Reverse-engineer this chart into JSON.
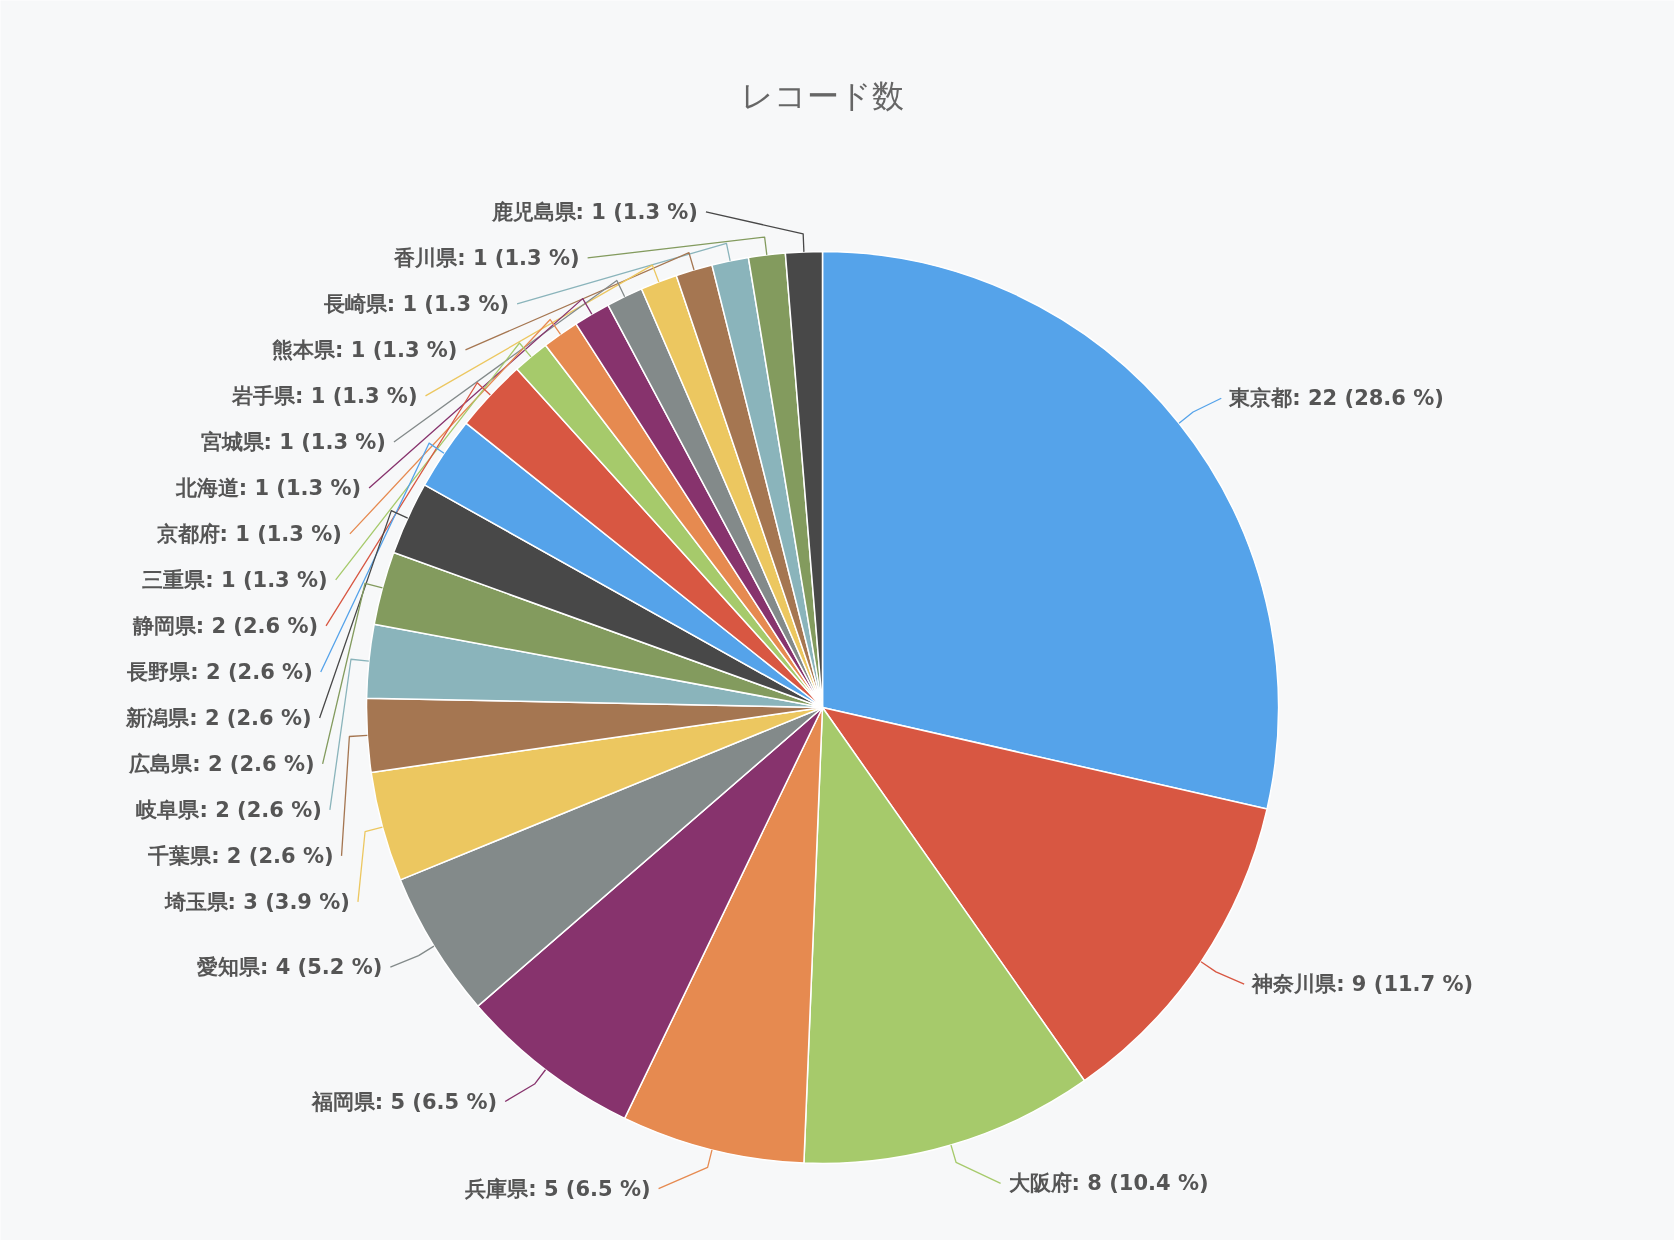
{
  "chart_data": {
    "type": "pie",
    "title": "レコード数",
    "categories": [
      "東京都",
      "神奈川県",
      "大阪府",
      "兵庫県",
      "福岡県",
      "愛知県",
      "埼玉県",
      "千葉県",
      "岐阜県",
      "広島県",
      "新潟県",
      "長野県",
      "静岡県",
      "三重県",
      "京都府",
      "北海道",
      "宮城県",
      "岩手県",
      "熊本県",
      "長崎県",
      "香川県",
      "鹿児島県"
    ],
    "values": [
      22,
      9,
      8,
      5,
      5,
      4,
      3,
      2,
      2,
      2,
      2,
      2,
      2,
      1,
      1,
      1,
      1,
      1,
      1,
      1,
      1,
      1
    ],
    "value_labels": [
      "22 (28.6 %)",
      "9 (11.7 %)",
      "8 (10.4 %)",
      "5 (6.5 %)",
      "5 (6.5 %)",
      "4 (5.2 %)",
      "3 (3.9 %)",
      "2 (2.6 %)",
      "2 (2.6 %)",
      "2 (2.6 %)",
      "2 (2.6 %)",
      "2 (2.6 %)",
      "2 (2.6 %)",
      "1 (1.3 %)",
      "1 (1.3 %)",
      "1 (1.3 %)",
      "1 (1.3 %)",
      "1 (1.3 %)",
      "1 (1.3 %)",
      "1 (1.3 %)",
      "1 (1.3 %)",
      "1 (1.3 %)"
    ],
    "colors": [
      "#55a3ea",
      "#d85742",
      "#a6ca6b",
      "#e68a50",
      "#87336d",
      "#838a8a",
      "#ecc760",
      "#a57651",
      "#8ab4bb",
      "#839b5e",
      "#484848",
      "#55a3ea",
      "#d85742",
      "#a6ca6b",
      "#e68a50",
      "#87336d",
      "#838a8a",
      "#ecc760",
      "#a57651",
      "#8ab4bb",
      "#839b5e",
      "#484848"
    ]
  }
}
